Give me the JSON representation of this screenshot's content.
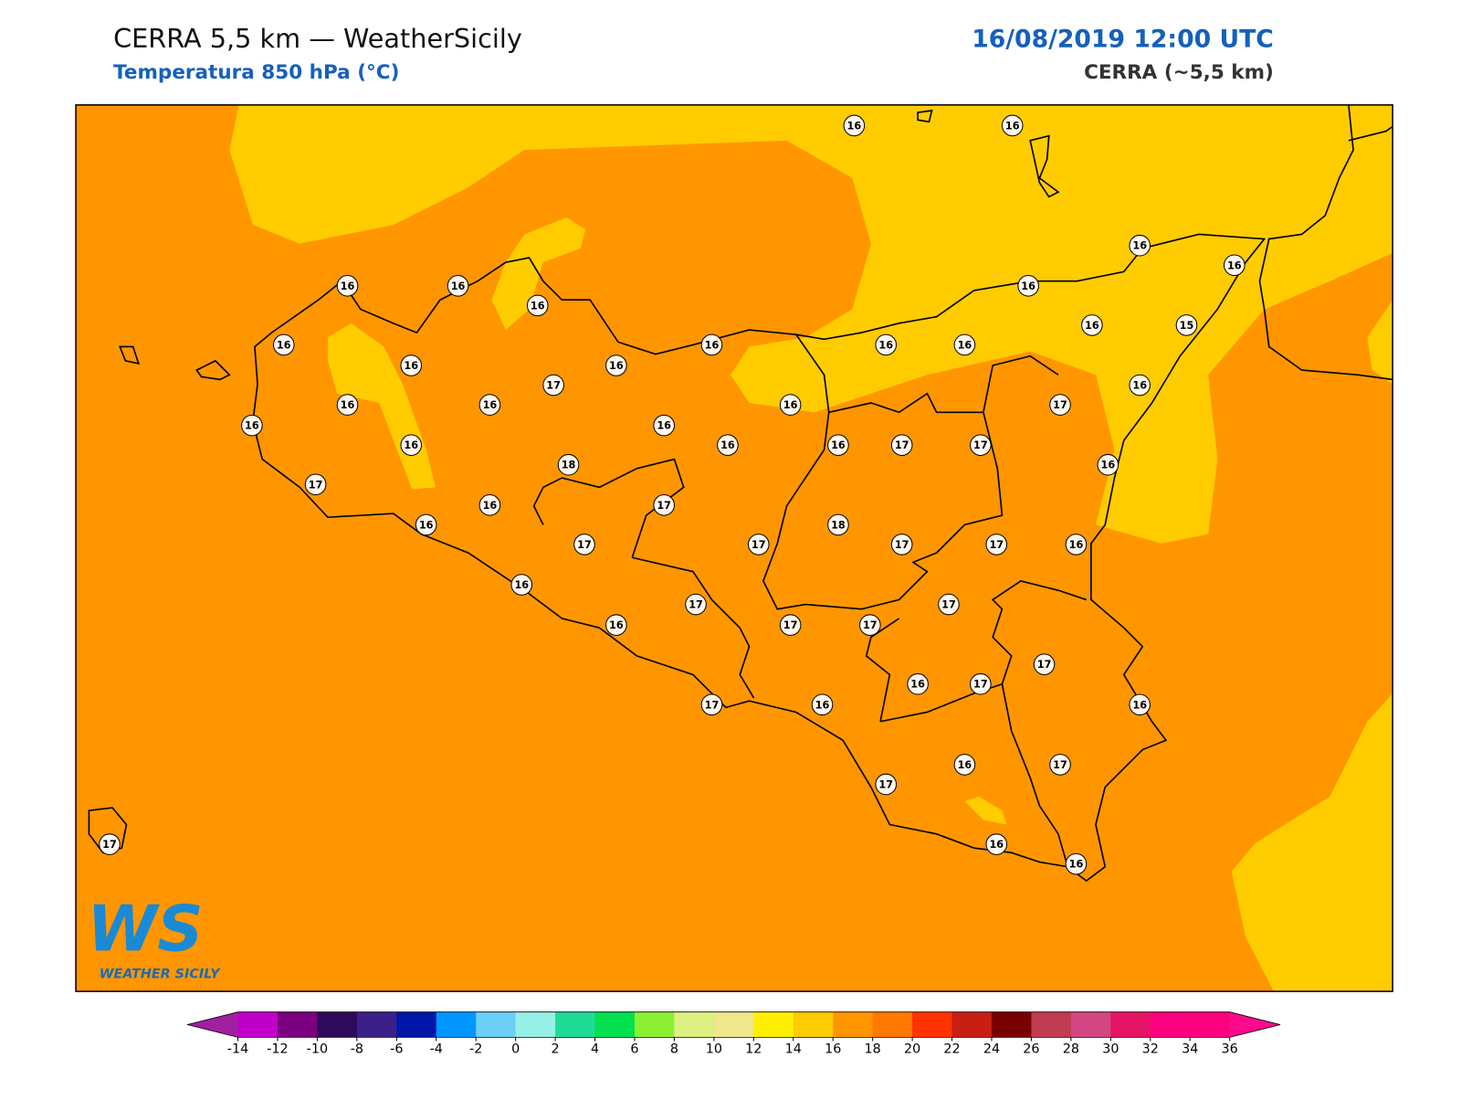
{
  "header": {
    "title": "CERRA 5,5 km — WeatherSicily",
    "subtitle": "Temperatura 850 hPa (°C)",
    "datetime": "16/08/2019 12:00 UTC",
    "model": "CERRA (~5,5 km)"
  },
  "stations": [
    16,
    16,
    16,
    16,
    16,
    16,
    16,
    16,
    16,
    16,
    16,
    16,
    16,
    15,
    16,
    16,
    17,
    16,
    16,
    16,
    16,
    17,
    16,
    16,
    16,
    16,
    16,
    17,
    17,
    18,
    16,
    17,
    16,
    17,
    16,
    18,
    17,
    17,
    17,
    17,
    16,
    16,
    17,
    17,
    16,
    17,
    17,
    17,
    16,
    17,
    17,
    16,
    16,
    16,
    17,
    17,
    16,
    16,
    17
  ],
  "colorbar": {
    "ticks": [
      -14,
      -12,
      -10,
      -8,
      -6,
      -4,
      -2,
      0,
      2,
      4,
      6,
      8,
      10,
      12,
      14,
      16,
      18,
      20,
      22,
      24,
      26,
      28,
      30,
      32,
      34,
      36
    ],
    "colors": [
      "#c000c8",
      "#7a0080",
      "#2e0a5a",
      "#3a2088",
      "#0016a8",
      "#0096ff",
      "#6ccff6",
      "#96f0e6",
      "#1edc96",
      "#00e050",
      "#8cf032",
      "#dcf082",
      "#f0e68c",
      "#fff000",
      "#ffcc00",
      "#ff9600",
      "#ff7800",
      "#ff3200",
      "#c81e14",
      "#780000",
      "#c03c50",
      "#d24682",
      "#e61464",
      "#ff0080",
      "#ff007f"
    ],
    "under": "#a020a0",
    "over": "#ff0a8c"
  },
  "logo": {
    "mark": "WS",
    "text": "WEATHER SICILY"
  }
}
